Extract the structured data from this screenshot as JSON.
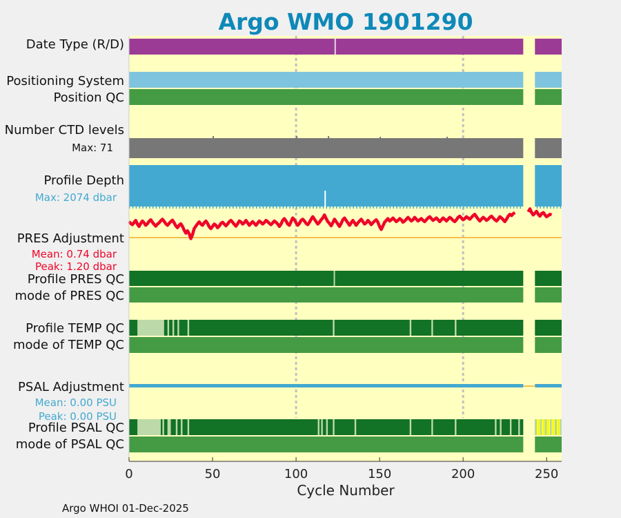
{
  "title": "Argo WMO 1901290",
  "footer": "Argo WHOI 01-Dec-2025",
  "colors": {
    "title": "#0e89b8",
    "background": "#ffffc0",
    "purple": "#9c3b96",
    "lightblue": "#7fc4de",
    "qc_green_dark": "#127225",
    "qc_green": "#459a44",
    "qc_green_light": "#bcd9a9",
    "gray": "#777777",
    "depth_blue": "#43a9d0",
    "pres_red": "#ef0529",
    "adj_orange": "#f3c14e",
    "psal_blue": "#43a9d0",
    "psal_yellow": "#ffff22",
    "grid": "#c0c0c0"
  },
  "rows": {
    "date_type": "Date Type (R/D)",
    "positioning_system": "Positioning System",
    "position_qc": "Position QC",
    "n_ctd_levels": "Number CTD levels",
    "n_ctd_max": "Max: 71",
    "profile_depth": "Profile Depth",
    "profile_depth_max": "Max: 2074 dbar",
    "pres_adjustment": "PRES Adjustment",
    "pres_mean": "Mean: 0.74 dbar",
    "pres_peak": "Peak: 1.20 dbar",
    "profile_pres_qc": "Profile PRES QC",
    "mode_pres_qc": "mode of PRES QC",
    "profile_temp_qc": "Profile TEMP QC",
    "mode_temp_qc": "mode of TEMP QC",
    "psal_adjustment": "PSAL Adjustment",
    "psal_mean": "Mean: 0.00 PSU",
    "psal_peak": "Peak: 0.00 PSU",
    "profile_psal_qc": "Profile PSAL QC",
    "mode_psal_qc": "mode of PSAL QC"
  },
  "chart_data": {
    "type": "bar",
    "xlabel": "Cycle Number",
    "xlim": [
      0,
      259
    ],
    "xticks": [
      0,
      50,
      100,
      150,
      200,
      250
    ],
    "grid_x": [
      100,
      200
    ],
    "cycles_present": [
      [
        0,
        236
      ],
      [
        243,
        259
      ]
    ],
    "date_type_gaps": [
      123
    ],
    "pres_adjustment": {
      "mean": 0.74,
      "peak": 1.2,
      "ylim": [
        -0.5,
        1.3
      ],
      "values": [
        0.78,
        0.72,
        0.68,
        0.75,
        0.82,
        0.7,
        0.62,
        0.72,
        0.8,
        0.74,
        0.66,
        0.71,
        0.79,
        0.84,
        0.76,
        0.69,
        0.63,
        0.7,
        0.74,
        0.81,
        0.86,
        0.79,
        0.71,
        0.66,
        0.72,
        0.78,
        0.83,
        0.74,
        0.64,
        0.58,
        0.66,
        0.71,
        0.62,
        0.5,
        0.4,
        0.48,
        0.38,
        0.22,
        0.35,
        0.55,
        0.63,
        0.71,
        0.77,
        0.7,
        0.66,
        0.74,
        0.8,
        0.72,
        0.61,
        0.55,
        0.62,
        0.7,
        0.66,
        0.58,
        0.63,
        0.72,
        0.76,
        0.7,
        0.64,
        0.7,
        0.78,
        0.82,
        0.76,
        0.69,
        0.63,
        0.71,
        0.8,
        0.77,
        0.7,
        0.74,
        0.82,
        0.74,
        0.66,
        0.72,
        0.78,
        0.72,
        0.66,
        0.73,
        0.8,
        0.76,
        0.7,
        0.75,
        0.82,
        0.78,
        0.72,
        0.68,
        0.74,
        0.8,
        0.76,
        0.7,
        0.62,
        0.7,
        0.82,
        0.88,
        0.8,
        0.7,
        0.66,
        0.78,
        0.9,
        0.84,
        0.74,
        0.66,
        0.72,
        0.82,
        0.86,
        0.8,
        0.72,
        0.68,
        0.76,
        0.86,
        0.94,
        0.86,
        0.78,
        0.7,
        0.76,
        0.84,
        0.9,
        1.0,
        0.88,
        0.78,
        0.72,
        0.64,
        0.74,
        0.86,
        0.78,
        0.7,
        0.62,
        0.72,
        0.84,
        0.9,
        0.82,
        0.74,
        0.66,
        0.74,
        0.82,
        0.74,
        0.66,
        0.74,
        0.8,
        0.86,
        0.78,
        0.7,
        0.74,
        0.82,
        0.76,
        0.68,
        0.74,
        0.8,
        0.84,
        0.76,
        0.62,
        0.52,
        0.64,
        0.76,
        0.82,
        0.88,
        0.8,
        0.84,
        0.9,
        0.84,
        0.78,
        0.82,
        0.88,
        0.84,
        0.76,
        0.8,
        0.86,
        0.92,
        0.86,
        0.8,
        0.84,
        0.92,
        0.86,
        0.8,
        0.84,
        0.88,
        0.82,
        0.78,
        0.84,
        0.9,
        0.94,
        0.88,
        0.82,
        0.86,
        0.9,
        0.84,
        0.78,
        0.84,
        0.9,
        0.86,
        0.8,
        0.86,
        0.92,
        0.88,
        0.82,
        0.78,
        0.84,
        0.92,
        0.96,
        0.9,
        0.84,
        0.88,
        0.94,
        0.9,
        0.86,
        0.92,
        0.98,
        1.02,
        0.94,
        0.86,
        0.8,
        0.86,
        0.92,
        0.88,
        0.82,
        0.86,
        0.92,
        0.96,
        0.9,
        0.84,
        0.8,
        0.86,
        0.94,
        0.9,
        0.84,
        0.78,
        0.86,
        0.96,
        1.02,
        0.98,
        1.04,
        1.08,
        null,
        null,
        null,
        null,
        null,
        null,
        null,
        1.1,
        1.2,
        1.08,
        1.0,
        1.06,
        1.12,
        1.02,
        0.96,
        1.04,
        1.08,
        1.0,
        0.94,
        0.98,
        1.02,
        1.0
      ]
    },
    "psal_adjustment": {
      "mean": 0.0,
      "peak": 0.0
    },
    "n_ctd_levels": {
      "max": 71
    },
    "profile_depth": {
      "max_dbar": 2074
    },
    "temp_qc_light_ranges": [
      [
        5,
        21
      ],
      [
        23,
        24
      ],
      [
        26,
        27
      ],
      [
        29,
        30
      ],
      [
        35,
        36
      ],
      [
        122,
        123
      ],
      [
        168,
        169
      ],
      [
        181,
        182
      ],
      [
        195,
        196
      ]
    ],
    "psal_qc_light_ranges": [
      [
        5,
        19
      ],
      [
        20,
        21
      ],
      [
        23,
        25
      ],
      [
        28,
        29
      ],
      [
        31,
        32
      ],
      [
        35,
        36
      ],
      [
        113,
        114
      ],
      [
        115,
        116
      ],
      [
        118,
        119
      ],
      [
        122,
        123
      ],
      [
        135,
        136
      ],
      [
        168,
        169
      ],
      [
        181,
        182
      ],
      [
        195,
        196
      ],
      [
        219,
        220
      ],
      [
        222,
        223
      ],
      [
        228,
        229
      ],
      [
        233,
        234
      ]
    ],
    "psal_qc_yellow_range": [
      243,
      259
    ]
  }
}
